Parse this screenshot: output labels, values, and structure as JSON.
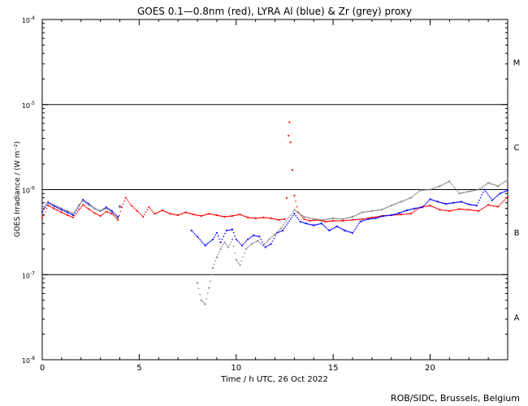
{
  "chart_data": {
    "type": "scatter",
    "title": "GOES 0.1—0.8nm (red), LYRA Al (blue) & Zr (grey) proxy",
    "xlabel": "Time / h UTC, 26 Oct 2022",
    "ylabel": "GOES Irradiance / (W m⁻²)",
    "xlim": [
      0,
      24
    ],
    "ylim_log10": [
      -8,
      -4
    ],
    "y_scale": "log",
    "x_ticks": [
      0,
      5,
      10,
      15,
      20
    ],
    "x_tick_labels": [
      "0",
      "5",
      "10",
      "15",
      "20"
    ],
    "y_ticks_log10": [
      -8,
      -7,
      -6,
      -5,
      -4
    ],
    "y_tick_labels": [
      {
        "base": "10",
        "exp": "-8"
      },
      {
        "base": "10",
        "exp": "-7"
      },
      {
        "base": "10",
        "exp": "-6"
      },
      {
        "base": "10",
        "exp": "-5"
      },
      {
        "base": "10",
        "exp": "-4"
      }
    ],
    "flare_classes": [
      {
        "label": "A",
        "center_log10": -7.5
      },
      {
        "label": "B",
        "center_log10": -6.5
      },
      {
        "label": "C",
        "center_log10": -5.5
      },
      {
        "label": "M",
        "center_log10": -4.5
      }
    ],
    "threshold_lines_log10": [
      -7,
      -6,
      -5
    ],
    "series": [
      {
        "name": "GOES 0.1—0.8nm",
        "color": "#ff0000",
        "x": [
          0.0,
          0.3,
          0.6,
          1.0,
          1.3,
          1.6,
          1.9,
          2.1,
          2.4,
          2.7,
          3.0,
          3.3,
          3.6,
          3.9,
          4.1,
          4.3,
          4.6,
          4.9,
          5.2,
          5.5,
          5.8,
          6.2,
          6.6,
          7.0,
          7.4,
          7.8,
          8.2,
          8.6,
          9.0,
          9.4,
          9.8,
          10.2,
          10.6,
          11.0,
          11.4,
          11.8,
          12.2,
          12.5,
          12.6,
          12.7,
          12.75,
          12.8,
          12.9,
          13.0,
          13.2,
          13.5,
          13.8,
          14.2,
          14.6,
          15.0,
          15.5,
          16.0,
          16.5,
          17.0,
          17.5,
          18.0,
          18.5,
          19.0,
          19.5,
          20.0,
          20.5,
          21.0,
          21.5,
          22.0,
          22.5,
          23.0,
          23.5,
          24.0
        ],
        "y": [
          4.7e-07,
          6.5e-07,
          6e-07,
          5.4e-07,
          5e-07,
          4.7e-07,
          5.8e-07,
          6.6e-07,
          5.9e-07,
          5.3e-07,
          4.9e-07,
          5.5e-07,
          5.2e-07,
          4.4e-07,
          6.2e-07,
          8e-07,
          6.5e-07,
          5.6e-07,
          4.8e-07,
          6.2e-07,
          5.2e-07,
          5.7e-07,
          5.2e-07,
          5e-07,
          5.4e-07,
          5.1e-07,
          4.9e-07,
          5.2e-07,
          5e-07,
          4.8e-07,
          4.9e-07,
          5.1e-07,
          4.7e-07,
          4.6e-07,
          4.7e-07,
          4.6e-07,
          4.4e-07,
          4.5e-07,
          8e-07,
          4.3e-06,
          6.2e-06,
          3.6e-06,
          1.7e-06,
          8.5e-07,
          5.4e-07,
          4.5e-07,
          4.3e-07,
          4.4e-07,
          4.2e-07,
          4.3e-07,
          4.3e-07,
          4.4e-07,
          4.5e-07,
          4.7e-07,
          4.9e-07,
          5e-07,
          5.1e-07,
          5.2e-07,
          6.2e-07,
          6.5e-07,
          5.8e-07,
          5.6e-07,
          5.9e-07,
          5.8e-07,
          5.6e-07,
          6.6e-07,
          6.3e-07,
          8.2e-07
        ]
      },
      {
        "name": "LYRA Al",
        "color": "#0000ff",
        "x": [
          0.0,
          0.3,
          0.6,
          1.0,
          1.3,
          1.6,
          1.9,
          2.1,
          2.4,
          2.7,
          3.0,
          3.3,
          3.6,
          3.9,
          4.0,
          7.7,
          8.0,
          8.4,
          8.8,
          9.0,
          9.2,
          9.5,
          9.8,
          10.0,
          10.3,
          10.6,
          10.9,
          11.2,
          11.5,
          11.8,
          12.1,
          12.4,
          13.0,
          13.3,
          13.6,
          14.0,
          14.4,
          14.8,
          15.2,
          15.6,
          16.0,
          16.4,
          16.8,
          17.2,
          17.6,
          18.0,
          18.4,
          18.8,
          19.2,
          19.6,
          20.0,
          20.4,
          20.8,
          21.2,
          21.6,
          22.0,
          22.4,
          22.8,
          23.2,
          23.6,
          24.0
        ],
        "y": [
          5.5e-07,
          7e-07,
          6.4e-07,
          5.8e-07,
          5.4e-07,
          5e-07,
          6.5e-07,
          7.6e-07,
          6.8e-07,
          6e-07,
          5.6e-07,
          6.2e-07,
          5.6e-07,
          4.8e-07,
          6.4e-07,
          3.3e-07,
          2.8e-07,
          2.2e-07,
          2.6e-07,
          3.1e-07,
          2.4e-07,
          3.3e-07,
          3.4e-07,
          2.6e-07,
          2.2e-07,
          2.6e-07,
          2.9e-07,
          2.8e-07,
          2.1e-07,
          2.3e-07,
          3.1e-07,
          3.3e-07,
          5.2e-07,
          4.2e-07,
          4e-07,
          3.8e-07,
          4e-07,
          3.3e-07,
          3.7e-07,
          3.3e-07,
          3.1e-07,
          4.2e-07,
          4.5e-07,
          4.6e-07,
          4.9e-07,
          5e-07,
          5.3e-07,
          5.7e-07,
          6e-07,
          6.2e-07,
          7.7e-07,
          7.2e-07,
          6.8e-07,
          7e-07,
          7.2e-07,
          6.7e-07,
          6.5e-07,
          1e-06,
          7.5e-07,
          9e-07,
          9.8e-07
        ]
      },
      {
        "name": "LYRA Zr",
        "color": "#808080",
        "x": [
          0.0,
          0.3,
          0.6,
          1.0,
          1.3,
          1.6,
          1.9,
          2.1,
          2.4,
          2.7,
          3.0,
          3.3,
          3.6,
          3.9,
          4.0,
          8.0,
          8.2,
          8.4,
          8.6,
          8.8,
          9.0,
          9.2,
          9.4,
          9.6,
          9.8,
          10.0,
          10.2,
          10.5,
          10.8,
          11.1,
          11.4,
          11.7,
          12.0,
          12.3,
          13.0,
          13.5,
          14.0,
          14.5,
          15.0,
          15.5,
          16.0,
          16.5,
          17.0,
          17.5,
          18.0,
          18.5,
          19.0,
          19.5,
          20.0,
          20.5,
          21.0,
          21.5,
          22.0,
          22.5,
          23.0,
          23.5,
          24.0
        ],
        "y": [
          6e-07,
          7.2e-07,
          6.6e-07,
          6e-07,
          5.6e-07,
          5.2e-07,
          6.6e-07,
          7.4e-07,
          6.6e-07,
          6e-07,
          5.6e-07,
          6e-07,
          5.4e-07,
          4.6e-07,
          6.2e-07,
          8e-08,
          5e-08,
          4.5e-08,
          7e-08,
          1.2e-07,
          1.6e-07,
          2e-07,
          2.4e-07,
          2.1e-07,
          2.6e-07,
          1.5e-07,
          1.3e-07,
          2e-07,
          2.3e-07,
          2.5e-07,
          2.2e-07,
          2.6e-07,
          3e-07,
          3.5e-07,
          5.8e-07,
          4.8e-07,
          4.5e-07,
          4.4e-07,
          4.6e-07,
          4.5e-07,
          4.8e-07,
          5.4e-07,
          5.6e-07,
          5.8e-07,
          6.5e-07,
          7.2e-07,
          8e-07,
          9.8e-07,
          1e-06,
          1.1e-06,
          1.25e-06,
          9e-07,
          9.5e-07,
          1e-06,
          1.2e-06,
          1.1e-06,
          1.3e-06
        ]
      }
    ]
  },
  "footer": {
    "credit": "ROB/SIDC, Brussels, Belgium"
  }
}
